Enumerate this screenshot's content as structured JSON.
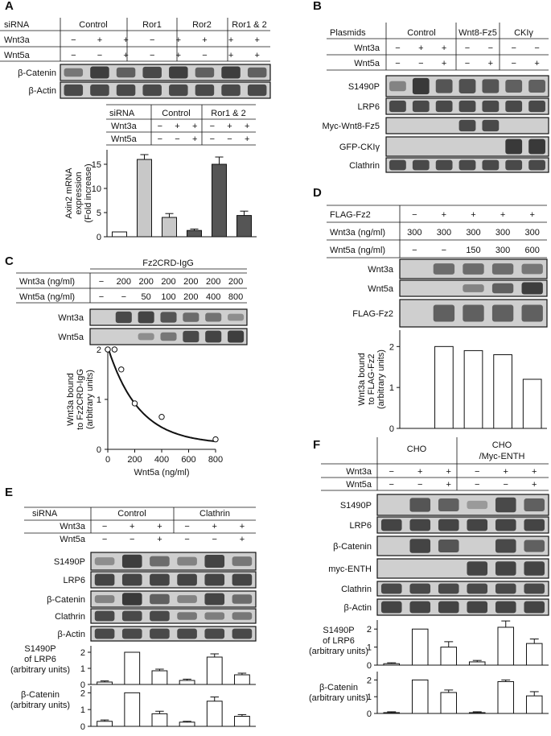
{
  "panels": {
    "A": {
      "label": "A",
      "header": {
        "siRNA_label": "siRNA",
        "groups": [
          "Control",
          "Ror1",
          "Ror2",
          "Ror1 & 2"
        ],
        "rows": [
          {
            "label": "Wnt3a",
            "values": [
              "−",
              "+",
              "+",
              "−",
              "+",
              "+",
              "+",
              "+"
            ]
          },
          {
            "label": "Wnt5a",
            "values": [
              "−",
              "−",
              "+",
              "−",
              "+",
              "−",
              "+",
              "+"
            ]
          }
        ]
      },
      "blots": [
        "β-Catenin",
        "β-Actin"
      ],
      "inset": {
        "siRNA_label": "siRNA",
        "groups": [
          "Control",
          "Ror1 & 2"
        ],
        "rows": [
          {
            "label": "Wnt3a",
            "values": [
              "−",
              "+",
              "+",
              "−",
              "+",
              "+"
            ]
          },
          {
            "label": "Wnt5a",
            "values": [
              "−",
              "−",
              "+",
              "−",
              "−",
              "+"
            ]
          }
        ]
      }
    },
    "B": {
      "label": "B",
      "header": {
        "plasmids_label": "Plasmids",
        "groups": [
          "Control",
          "Wnt8-Fz5",
          "CKIγ"
        ],
        "rows": [
          {
            "label": "Wnt3a",
            "values": [
              "−",
              "+",
              "+",
              "−",
              "−",
              "−",
              "−"
            ]
          },
          {
            "label": "Wnt5a",
            "values": [
              "−",
              "−",
              "+",
              "−",
              "+",
              "−",
              "+"
            ]
          }
        ]
      },
      "blots": [
        "S1490P",
        "LRP6",
        "Myc-Wnt8-Fz5",
        "GFP-CKIγ",
        "Clathrin"
      ]
    },
    "C": {
      "label": "C",
      "header": {
        "top_label": "Fz2CRD-IgG",
        "rows": [
          {
            "label": "Wnt3a (ng/ml)",
            "values": [
              "−",
              "200",
              "200",
              "200",
              "200",
              "200",
              "200"
            ]
          },
          {
            "label": "Wnt5a (ng/ml)",
            "values": [
              "−",
              "−",
              "50",
              "100",
              "200",
              "400",
              "800"
            ]
          }
        ]
      },
      "blots": [
        "Wnt3a",
        "Wnt5a"
      ]
    },
    "D": {
      "label": "D",
      "header": {
        "rows": [
          {
            "label": "FLAG-Fz2",
            "values": [
              "−",
              "+",
              "+",
              "+",
              "+"
            ]
          },
          {
            "label": "Wnt3a (ng/ml)",
            "values": [
              "300",
              "300",
              "300",
              "300",
              "300"
            ]
          },
          {
            "label": "Wnt5a (ng/ml)",
            "values": [
              "−",
              "−",
              "150",
              "300",
              "600"
            ]
          }
        ]
      },
      "blots": [
        "Wnt3a",
        "Wnt5a",
        "FLAG-Fz2"
      ]
    },
    "E": {
      "label": "E",
      "header": {
        "siRNA_label": "siRNA",
        "groups": [
          "Control",
          "Clathrin"
        ],
        "rows": [
          {
            "label": "Wnt3a",
            "values": [
              "−",
              "+",
              "+",
              "−",
              "+",
              "+"
            ]
          },
          {
            "label": "Wnt5a",
            "values": [
              "−",
              "−",
              "+",
              "−",
              "−",
              "+"
            ]
          }
        ]
      },
      "blots": [
        "S1490P",
        "LRP6",
        "β-Catenin",
        "Clathrin",
        "β-Actin"
      ]
    },
    "F": {
      "label": "F",
      "header": {
        "groups": [
          "CHO",
          "CHO\n/Myc-ENTH"
        ],
        "group_line1": "CHO",
        "group_line2": "/Myc-ENTH",
        "rows": [
          {
            "label": "Wnt3a",
            "values": [
              "−",
              "+",
              "+",
              "−",
              "+",
              "+"
            ]
          },
          {
            "label": "Wnt5a",
            "values": [
              "−",
              "−",
              "+",
              "−",
              "−",
              "+"
            ]
          }
        ]
      },
      "blots": [
        "S1490P",
        "LRP6",
        "β-Catenin",
        "myc-ENTH",
        "Clathrin",
        "β-Actin"
      ]
    }
  },
  "chart_data": [
    {
      "panel": "A",
      "type": "bar",
      "title": "",
      "xlabel": "",
      "ylabel": "Axin2 mRNA expression (Fold increase)",
      "ylim": [
        0,
        18
      ],
      "yticks": [
        0,
        5,
        10,
        15
      ],
      "values": [
        1.0,
        16.0,
        4.0,
        1.3,
        15.0,
        4.4
      ],
      "errors": [
        0,
        1.0,
        0.8,
        0.3,
        1.5,
        0.9
      ],
      "bar_colors": [
        "#ffffff",
        "#c8c8c8",
        "#c8c8c8",
        "#555555",
        "#555555",
        "#555555"
      ]
    },
    {
      "panel": "C",
      "type": "scatter",
      "title": "",
      "xlabel": "Wnt5a (ng/ml)",
      "ylabel": "Wnt3a bound to Fz2CRD-IgG (arbitrary units)",
      "xlim": [
        0,
        800
      ],
      "ylim": [
        0,
        2
      ],
      "xticks": [
        0,
        200,
        400,
        600,
        800
      ],
      "yticks": [
        0,
        1,
        2
      ],
      "x": [
        0,
        50,
        100,
        200,
        400,
        800
      ],
      "y": [
        2.0,
        2.0,
        1.6,
        0.92,
        0.65,
        0.2
      ],
      "fit": "curve"
    },
    {
      "panel": "D",
      "type": "bar",
      "title": "",
      "ylabel": "Wnt3a bound to FLAG-Fz2 (arbitrary units)",
      "ylim": [
        0,
        2.4
      ],
      "yticks": [
        0,
        1,
        2
      ],
      "values": [
        0,
        2.0,
        1.9,
        1.8,
        1.2
      ],
      "errors": [
        0,
        0,
        0,
        0,
        0
      ]
    },
    {
      "panel": "E",
      "type": "bar",
      "title": "",
      "ylabel": "S1490P of LRP6 (arbitrary units)",
      "ylim": [
        0,
        2.4
      ],
      "yticks": [
        0,
        1,
        2
      ],
      "values": [
        0.15,
        2.0,
        0.85,
        0.25,
        1.7,
        0.6
      ],
      "errors": [
        0.07,
        0,
        0.1,
        0.08,
        0.2,
        0.1
      ]
    },
    {
      "panel": "E",
      "type": "bar",
      "title": "",
      "ylabel": "β-Catenin (arbitrary units)",
      "ylim": [
        0,
        2.4
      ],
      "yticks": [
        0,
        1,
        2
      ],
      "values": [
        0.3,
        2.0,
        0.75,
        0.25,
        1.5,
        0.6
      ],
      "errors": [
        0.08,
        0,
        0.15,
        0.05,
        0.25,
        0.1
      ]
    },
    {
      "panel": "F",
      "type": "bar",
      "title": "",
      "ylabel": "S1490P of LRP6 (arbitrary units)",
      "ylim": [
        0,
        2.5
      ],
      "yticks": [
        0,
        1,
        2
      ],
      "values": [
        0.08,
        2.0,
        1.0,
        0.18,
        2.1,
        1.2
      ],
      "errors": [
        0.05,
        0,
        0.3,
        0.08,
        0.35,
        0.25
      ]
    },
    {
      "panel": "F",
      "type": "bar",
      "title": "",
      "ylabel": "β-Catenin (arbitrary units)",
      "ylim": [
        0,
        2.5
      ],
      "yticks": [
        0,
        1,
        2
      ],
      "values": [
        0.05,
        2.0,
        1.25,
        0.05,
        1.9,
        1.05
      ],
      "errors": [
        0.05,
        0,
        0.15,
        0.05,
        0.1,
        0.25
      ]
    }
  ]
}
